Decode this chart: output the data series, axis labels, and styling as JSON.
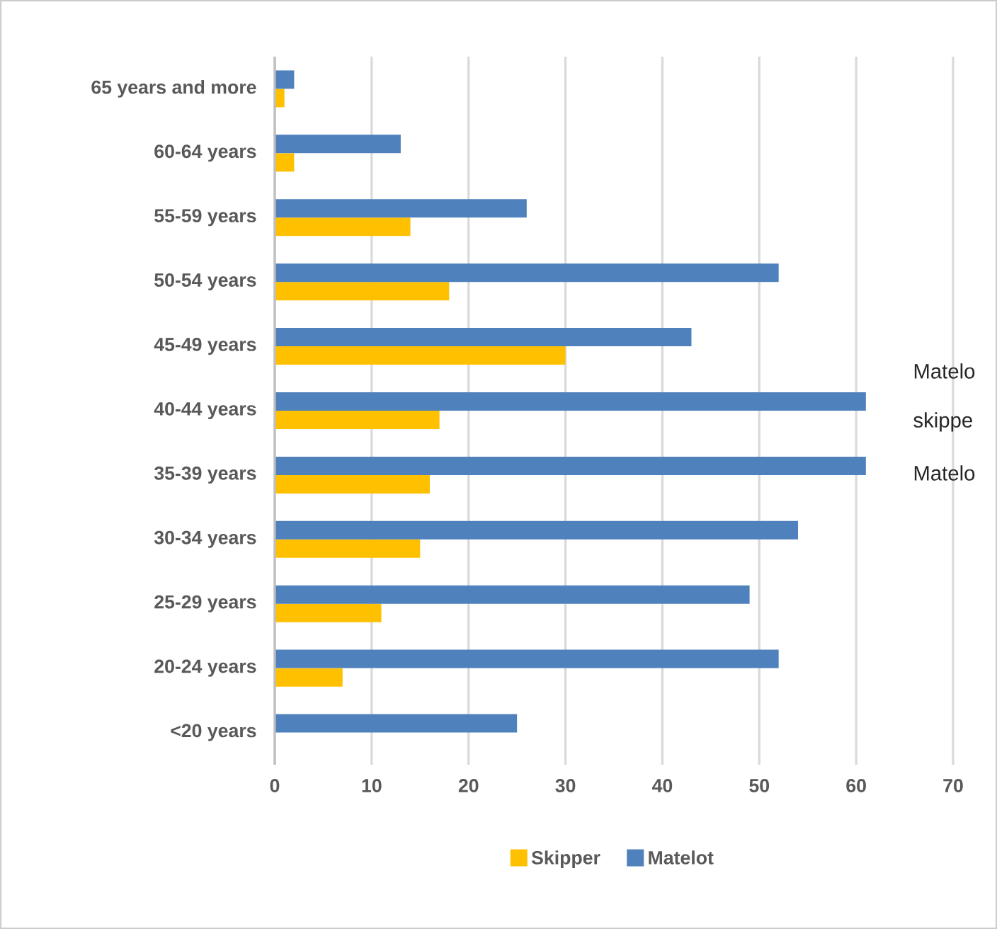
{
  "chart_data": {
    "type": "bar",
    "orientation": "horizontal",
    "categories": [
      "65 years and more",
      "60-64 years",
      "55-59 years",
      "50-54 years",
      "45-49 years",
      "40-44 years",
      "35-39 years",
      "30-34 years",
      "25-29 years",
      "20-24 years",
      "<20 years"
    ],
    "series": [
      {
        "name": "Skipper",
        "color": "#ffc000",
        "values": [
          1,
          2,
          14,
          18,
          30,
          17,
          16,
          15,
          11,
          7,
          0
        ]
      },
      {
        "name": "Matelot",
        "color": "#4f81bd",
        "values": [
          2,
          13,
          26,
          52,
          43,
          61,
          61,
          54,
          49,
          52,
          25
        ]
      }
    ],
    "xlim": [
      0,
      70
    ],
    "xticks": [
      0,
      10,
      20,
      30,
      40,
      50,
      60,
      70
    ],
    "grid": "x",
    "legend": "bottom",
    "annotations": [
      "Matelo",
      "skippe",
      "Matelo"
    ]
  }
}
